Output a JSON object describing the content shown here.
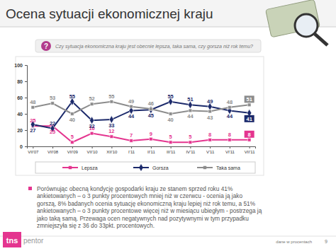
{
  "chart_data": {
    "type": "line",
    "title": "Ocena sytuacji ekonomicznej kraju",
    "subtitle": "Czy sytuacja ekonomiczna kraju jest obecnie lepsza, taka sama, czy gorsza niż rok temu?",
    "categories": [
      "VII'07",
      "VII'08",
      "VII'09",
      "VII'10",
      "XII'10",
      "I'11",
      "II'11",
      "III'11",
      "IV'11",
      "V'11",
      "VI'11",
      "VII'11"
    ],
    "series": [
      {
        "name": "Lepsza",
        "color": "#e4358f",
        "marker": "square",
        "values": [
          25,
          25,
          5,
          16,
          12,
          7,
          9,
          5,
          5,
          8,
          8,
          8
        ]
      },
      {
        "name": "Gorsza",
        "color": "#1c2a6b",
        "marker": "diamond",
        "values": [
          27,
          22,
          55,
          32,
          33,
          44,
          45,
          55,
          51,
          49,
          44,
          41
        ]
      },
      {
        "name": "Taka sama",
        "color": "#8c8c8c",
        "marker": "square",
        "values": [
          48,
          53,
          40,
          52,
          55,
          49,
          46,
          40,
          44,
          43,
          48,
          51
        ]
      }
    ],
    "ylim": [
      0,
      100
    ],
    "yticks": [
      0,
      20,
      40,
      60,
      80,
      100
    ],
    "grid": false,
    "legend": "bottom",
    "data_labels": true
  },
  "slide": {
    "icon": "?",
    "note": "Porównując obecną kondycję gospodarki kraju ze stanem sprzed roku 41% ankietowanych – o 3 punkty procentowych mniej niż w czerwcu - ocenia ją jako gorszą, 8% badanych ocenia sytuację ekonomiczną kraju lepiej niż rok temu, a 51% ankietowanych – o 3 punkty procentowe więcej niż w miesiącu ubiegłym - postrzega ją jako taką samą. Przewaga ocen negatywnych nad pozytywnymi w tym przypadku zmniejszyła się z 36 do 33pkt. procentowych.",
    "footer": "dane w procentach",
    "page_number": "9",
    "logo": [
      "tns",
      "pentor"
    ]
  }
}
